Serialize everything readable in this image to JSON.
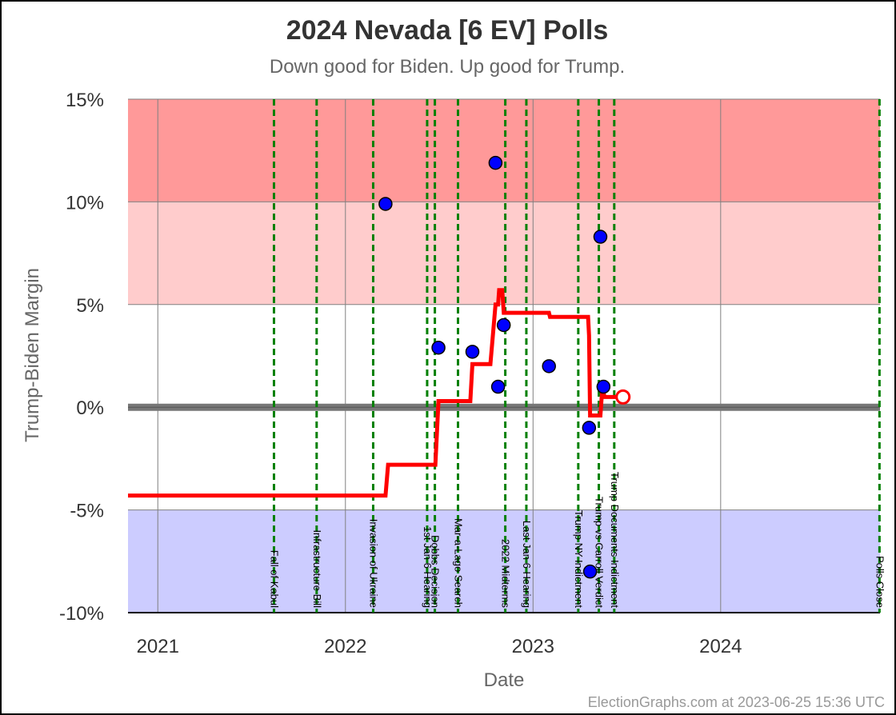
{
  "chart_data": {
    "type": "scatter",
    "title": "2024 Nevada [6 EV] Polls",
    "subtitle": "Down good for Biden. Up good for Trump.",
    "xlabel": "Date",
    "ylabel": "Trump-Biden Margin",
    "credit": "ElectionGraphs.com at 2023-06-25 15:36 UTC",
    "x_range": [
      "2020-11-04",
      "2024-11-06"
    ],
    "ylim": [
      -10,
      15
    ],
    "y_ticks": [
      {
        "value": 15,
        "label": "15%"
      },
      {
        "value": 10,
        "label": "10%"
      },
      {
        "value": 5,
        "label": "5%"
      },
      {
        "value": 0,
        "label": "0%"
      },
      {
        "value": -5,
        "label": "-5%"
      },
      {
        "value": -10,
        "label": "-10%"
      }
    ],
    "x_ticks": [
      {
        "date": "2021-01-01",
        "label": "2021"
      },
      {
        "date": "2022-01-01",
        "label": "2022"
      },
      {
        "date": "2023-01-01",
        "label": "2023"
      },
      {
        "date": "2024-01-01",
        "label": "2024"
      }
    ],
    "bands": [
      {
        "from": 10,
        "to": 15,
        "color": "#ff9999"
      },
      {
        "from": 5,
        "to": 10,
        "color": "#ffcccc"
      },
      {
        "from": -10,
        "to": -5,
        "color": "#ccccff"
      }
    ],
    "grid": true,
    "events": [
      {
        "date": "2021-08-15",
        "label": "Fall of Kabul"
      },
      {
        "date": "2021-11-06",
        "label": "Infrastructure Bill"
      },
      {
        "date": "2022-02-24",
        "label": "Invasion of Ukraine"
      },
      {
        "date": "2022-06-09",
        "label": "1st Jan 6 Hearing"
      },
      {
        "date": "2022-06-24",
        "label": "Dobbs Decision"
      },
      {
        "date": "2022-08-08",
        "label": "Mar-a-Lago Search"
      },
      {
        "date": "2022-11-08",
        "label": "2022 Midterms"
      },
      {
        "date": "2022-12-19",
        "label": "Last Jan 6 Hearing"
      },
      {
        "date": "2023-03-30",
        "label": "Trump NY Indictment"
      },
      {
        "date": "2023-05-09",
        "label": "Trump vs Carroll Verdict"
      },
      {
        "date": "2023-06-08",
        "label": "Trump Documents Indictment"
      },
      {
        "date": "2024-11-05",
        "label": "Polls Close"
      }
    ],
    "series": [
      {
        "kind": "polls",
        "points": [
          {
            "date": "2022-03-20",
            "margin": 9.9
          },
          {
            "date": "2022-07-01",
            "margin": 2.9
          },
          {
            "date": "2022-09-05",
            "margin": 2.7
          },
          {
            "date": "2022-10-20",
            "margin": 11.9
          },
          {
            "date": "2022-10-25",
            "margin": 1.0
          },
          {
            "date": "2022-11-05",
            "margin": 4.0
          },
          {
            "date": "2023-02-01",
            "margin": 2.0
          },
          {
            "date": "2023-04-20",
            "margin": -1.0
          },
          {
            "date": "2023-04-22",
            "margin": -8.0
          },
          {
            "date": "2023-05-12",
            "margin": 8.3
          },
          {
            "date": "2023-05-18",
            "margin": 1.0
          }
        ]
      },
      {
        "kind": "average",
        "color": "#ff0000",
        "points": [
          {
            "date": "2020-11-04",
            "margin": -4.3
          },
          {
            "date": "2022-03-20",
            "margin": -4.3
          },
          {
            "date": "2022-03-25",
            "margin": -2.8
          },
          {
            "date": "2022-06-25",
            "margin": -2.8
          },
          {
            "date": "2022-07-01",
            "margin": 0.3
          },
          {
            "date": "2022-09-01",
            "margin": 0.3
          },
          {
            "date": "2022-09-05",
            "margin": 2.1
          },
          {
            "date": "2022-10-10",
            "margin": 2.1
          },
          {
            "date": "2022-10-20",
            "margin": 5.0
          },
          {
            "date": "2022-10-25",
            "margin": 5.0
          },
          {
            "date": "2022-10-27",
            "margin": 5.7
          },
          {
            "date": "2022-11-02",
            "margin": 5.7
          },
          {
            "date": "2022-11-05",
            "margin": 4.6
          },
          {
            "date": "2023-02-01",
            "margin": 4.6
          },
          {
            "date": "2023-02-03",
            "margin": 4.4
          },
          {
            "date": "2023-04-18",
            "margin": 4.4
          },
          {
            "date": "2023-04-20",
            "margin": 3.5
          },
          {
            "date": "2023-04-22",
            "margin": -0.4
          },
          {
            "date": "2023-05-12",
            "margin": -0.4
          },
          {
            "date": "2023-05-16",
            "margin": 1.0
          },
          {
            "date": "2023-05-20",
            "margin": 0.5
          },
          {
            "date": "2023-06-25",
            "margin": 0.5
          }
        ],
        "current": {
          "date": "2023-06-25",
          "margin": 0.5
        }
      }
    ]
  }
}
